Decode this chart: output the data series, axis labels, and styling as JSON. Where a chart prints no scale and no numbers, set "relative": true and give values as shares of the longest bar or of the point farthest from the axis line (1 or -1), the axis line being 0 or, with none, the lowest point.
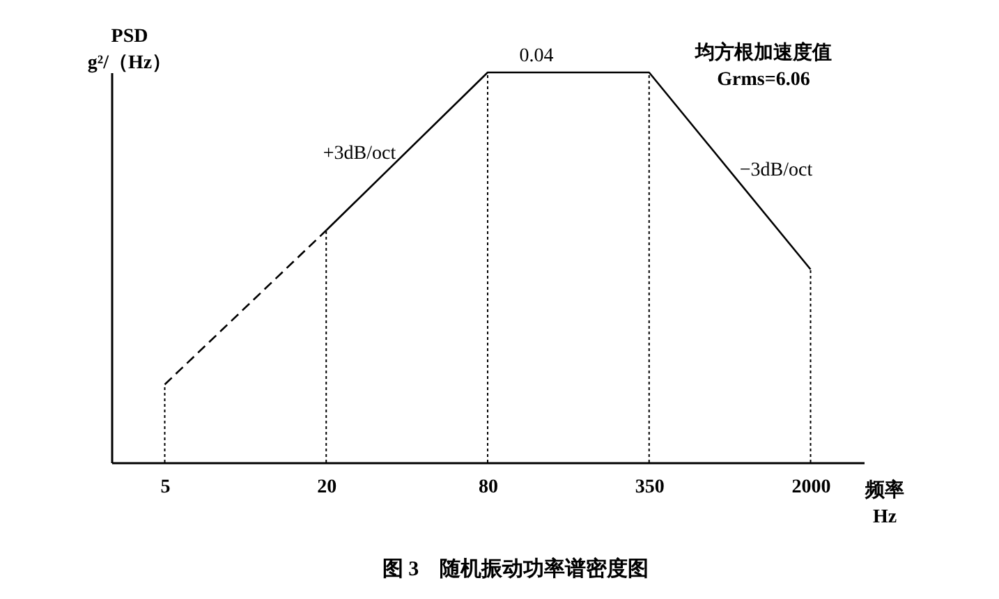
{
  "chart_data": {
    "type": "line",
    "title": "图 3　随机振动功率谱密度图",
    "xlabel": "频率\nHz",
    "ylabel": "PSD\ng²/（Hz）",
    "relative": true,
    "categories": [
      "5",
      "20",
      "80",
      "350",
      "2000"
    ],
    "series": [
      {
        "color": "#000000",
        "line_style": "dashed",
        "values": [
          0.2,
          0.595,
          null,
          null,
          null
        ]
      },
      {
        "color": "#000000",
        "line_style": "solid",
        "values": [
          null,
          0.595,
          1,
          1,
          0.495
        ]
      }
    ],
    "annotations": [
      "0.04",
      "+3dB/oct",
      "−3dB/oct",
      "均方根加速度值",
      "Grms=6.06"
    ],
    "ref_lines": [
      {
        "axis": "x",
        "value": "5",
        "line_style": "dotted",
        "color": "#000000"
      },
      {
        "axis": "x",
        "value": "20",
        "line_style": "dotted",
        "color": "#000000"
      },
      {
        "axis": "x",
        "value": "80",
        "line_style": "dotted",
        "color": "#000000"
      },
      {
        "axis": "x",
        "value": "350",
        "line_style": "dotted",
        "color": "#000000"
      },
      {
        "axis": "x",
        "value": "2000",
        "line_style": "dotted",
        "color": "#000000"
      }
    ],
    "grid": false,
    "marker": "none"
  }
}
